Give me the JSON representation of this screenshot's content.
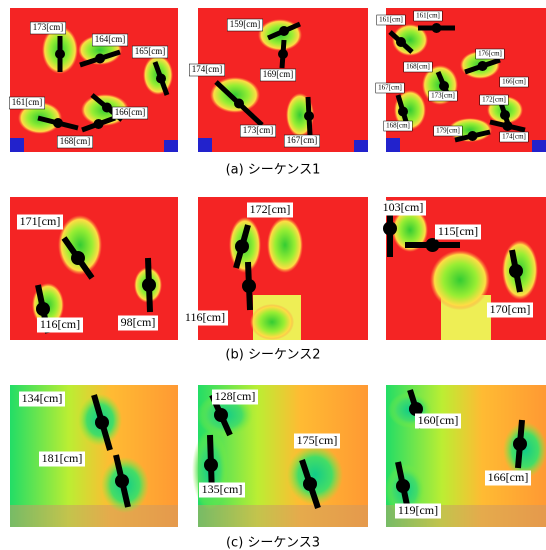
{
  "rows": [
    {
      "caption": "(a) シーケンス1",
      "panels": [
        {
          "labels": [
            "173[cm]",
            "164[cm]",
            "165[cm]",
            "161[cm]",
            "166[cm]",
            "168[cm]"
          ]
        },
        {
          "labels": [
            "159[cm]",
            "174[cm]",
            "169[cm]",
            "173[cm]",
            "167[cm]"
          ]
        },
        {
          "labels": [
            "161[cm]",
            "161[cm]",
            "176[cm]",
            "168[cm]",
            "166[cm]",
            "167[cm]",
            "173[cm]",
            "172[cm]",
            "168[cm]",
            "179[cm]",
            "174[cm]"
          ]
        }
      ]
    },
    {
      "caption": "(b) シーケンス2",
      "panels": [
        {
          "labels": [
            "171[cm]",
            "116[cm]",
            "98[cm]"
          ]
        },
        {
          "labels": [
            "172[cm]",
            "116[cm]"
          ]
        },
        {
          "labels": [
            "103[cm]",
            "115[cm]",
            "170[cm]"
          ]
        }
      ]
    },
    {
      "caption": "(c) シーケンス3",
      "panels": [
        {
          "labels": [
            "134[cm]",
            "181[cm]"
          ]
        },
        {
          "labels": [
            "128[cm]",
            "175[cm]",
            "135[cm]"
          ]
        },
        {
          "labels": [
            "160[cm]",
            "166[cm]",
            "119[cm]"
          ]
        }
      ]
    }
  ]
}
